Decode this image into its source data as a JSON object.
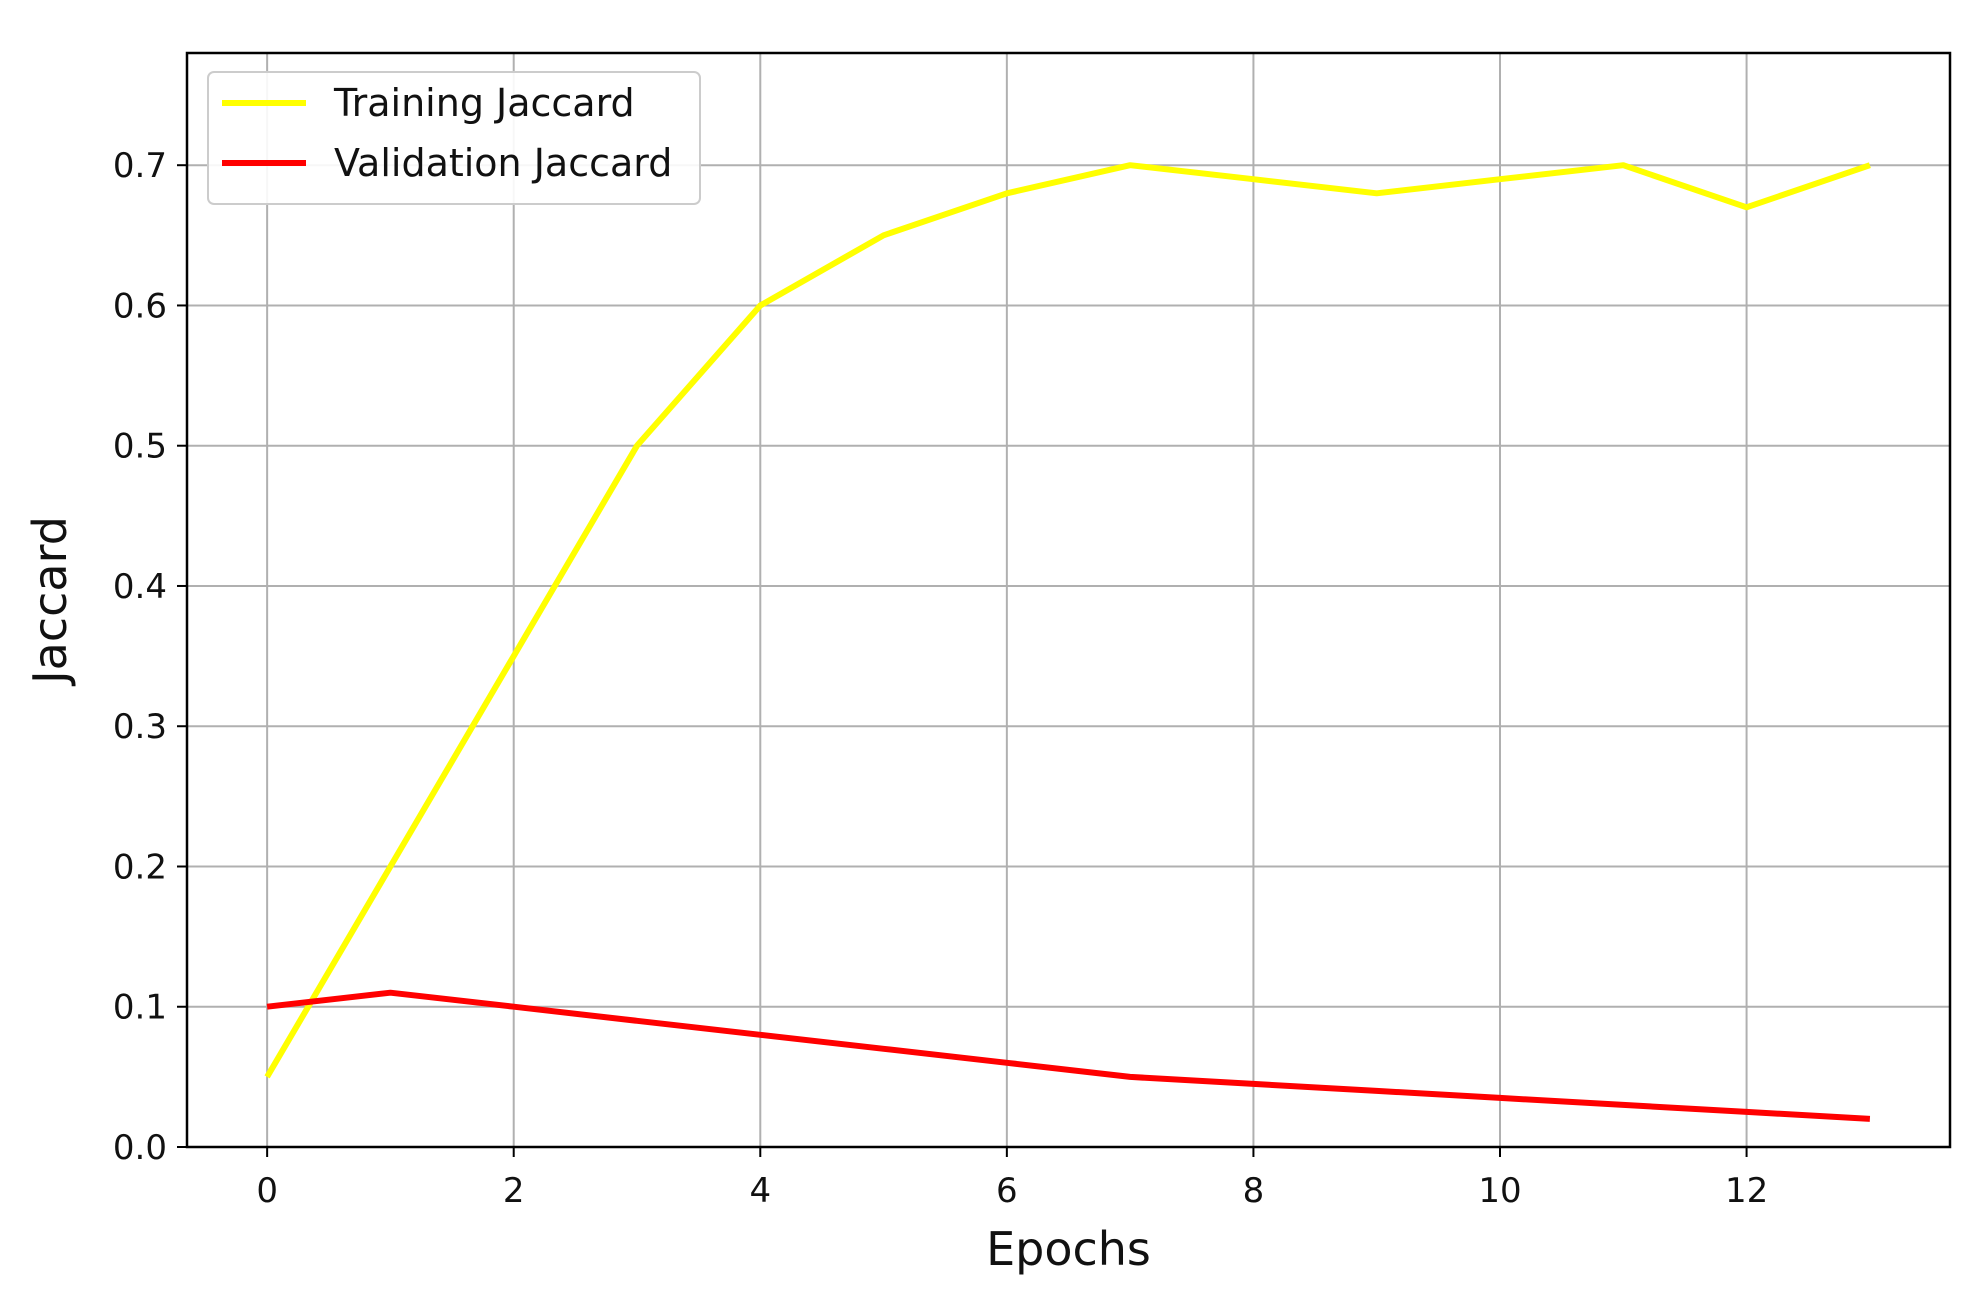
{
  "chart_data": {
    "type": "line",
    "xlabel": "Epochs",
    "ylabel": "Jaccard",
    "xlim": [
      -0.65,
      13.65
    ],
    "ylim": [
      0.0,
      0.78
    ],
    "xticks": [
      0,
      2,
      4,
      6,
      8,
      10,
      12
    ],
    "yticks": [
      0.0,
      0.1,
      0.2,
      0.3,
      0.4,
      0.5,
      0.6,
      0.7
    ],
    "grid": true,
    "legend_position": "top-left",
    "x": [
      0,
      1,
      2,
      3,
      4,
      5,
      6,
      7,
      8,
      9,
      10,
      11,
      12,
      13
    ],
    "series": [
      {
        "name": "Training Jaccard",
        "color": "#ffff00",
        "values": [
          0.05,
          0.2,
          0.35,
          0.5,
          0.6,
          0.65,
          0.68,
          0.7,
          0.69,
          0.68,
          0.69,
          0.7,
          0.67,
          0.7
        ]
      },
      {
        "name": "Validation Jaccard",
        "color": "#ff0000",
        "values": [
          0.1,
          0.11,
          0.1,
          0.09,
          0.08,
          0.07,
          0.06,
          0.05,
          0.045,
          0.04,
          0.035,
          0.03,
          0.025,
          0.02
        ]
      }
    ]
  }
}
